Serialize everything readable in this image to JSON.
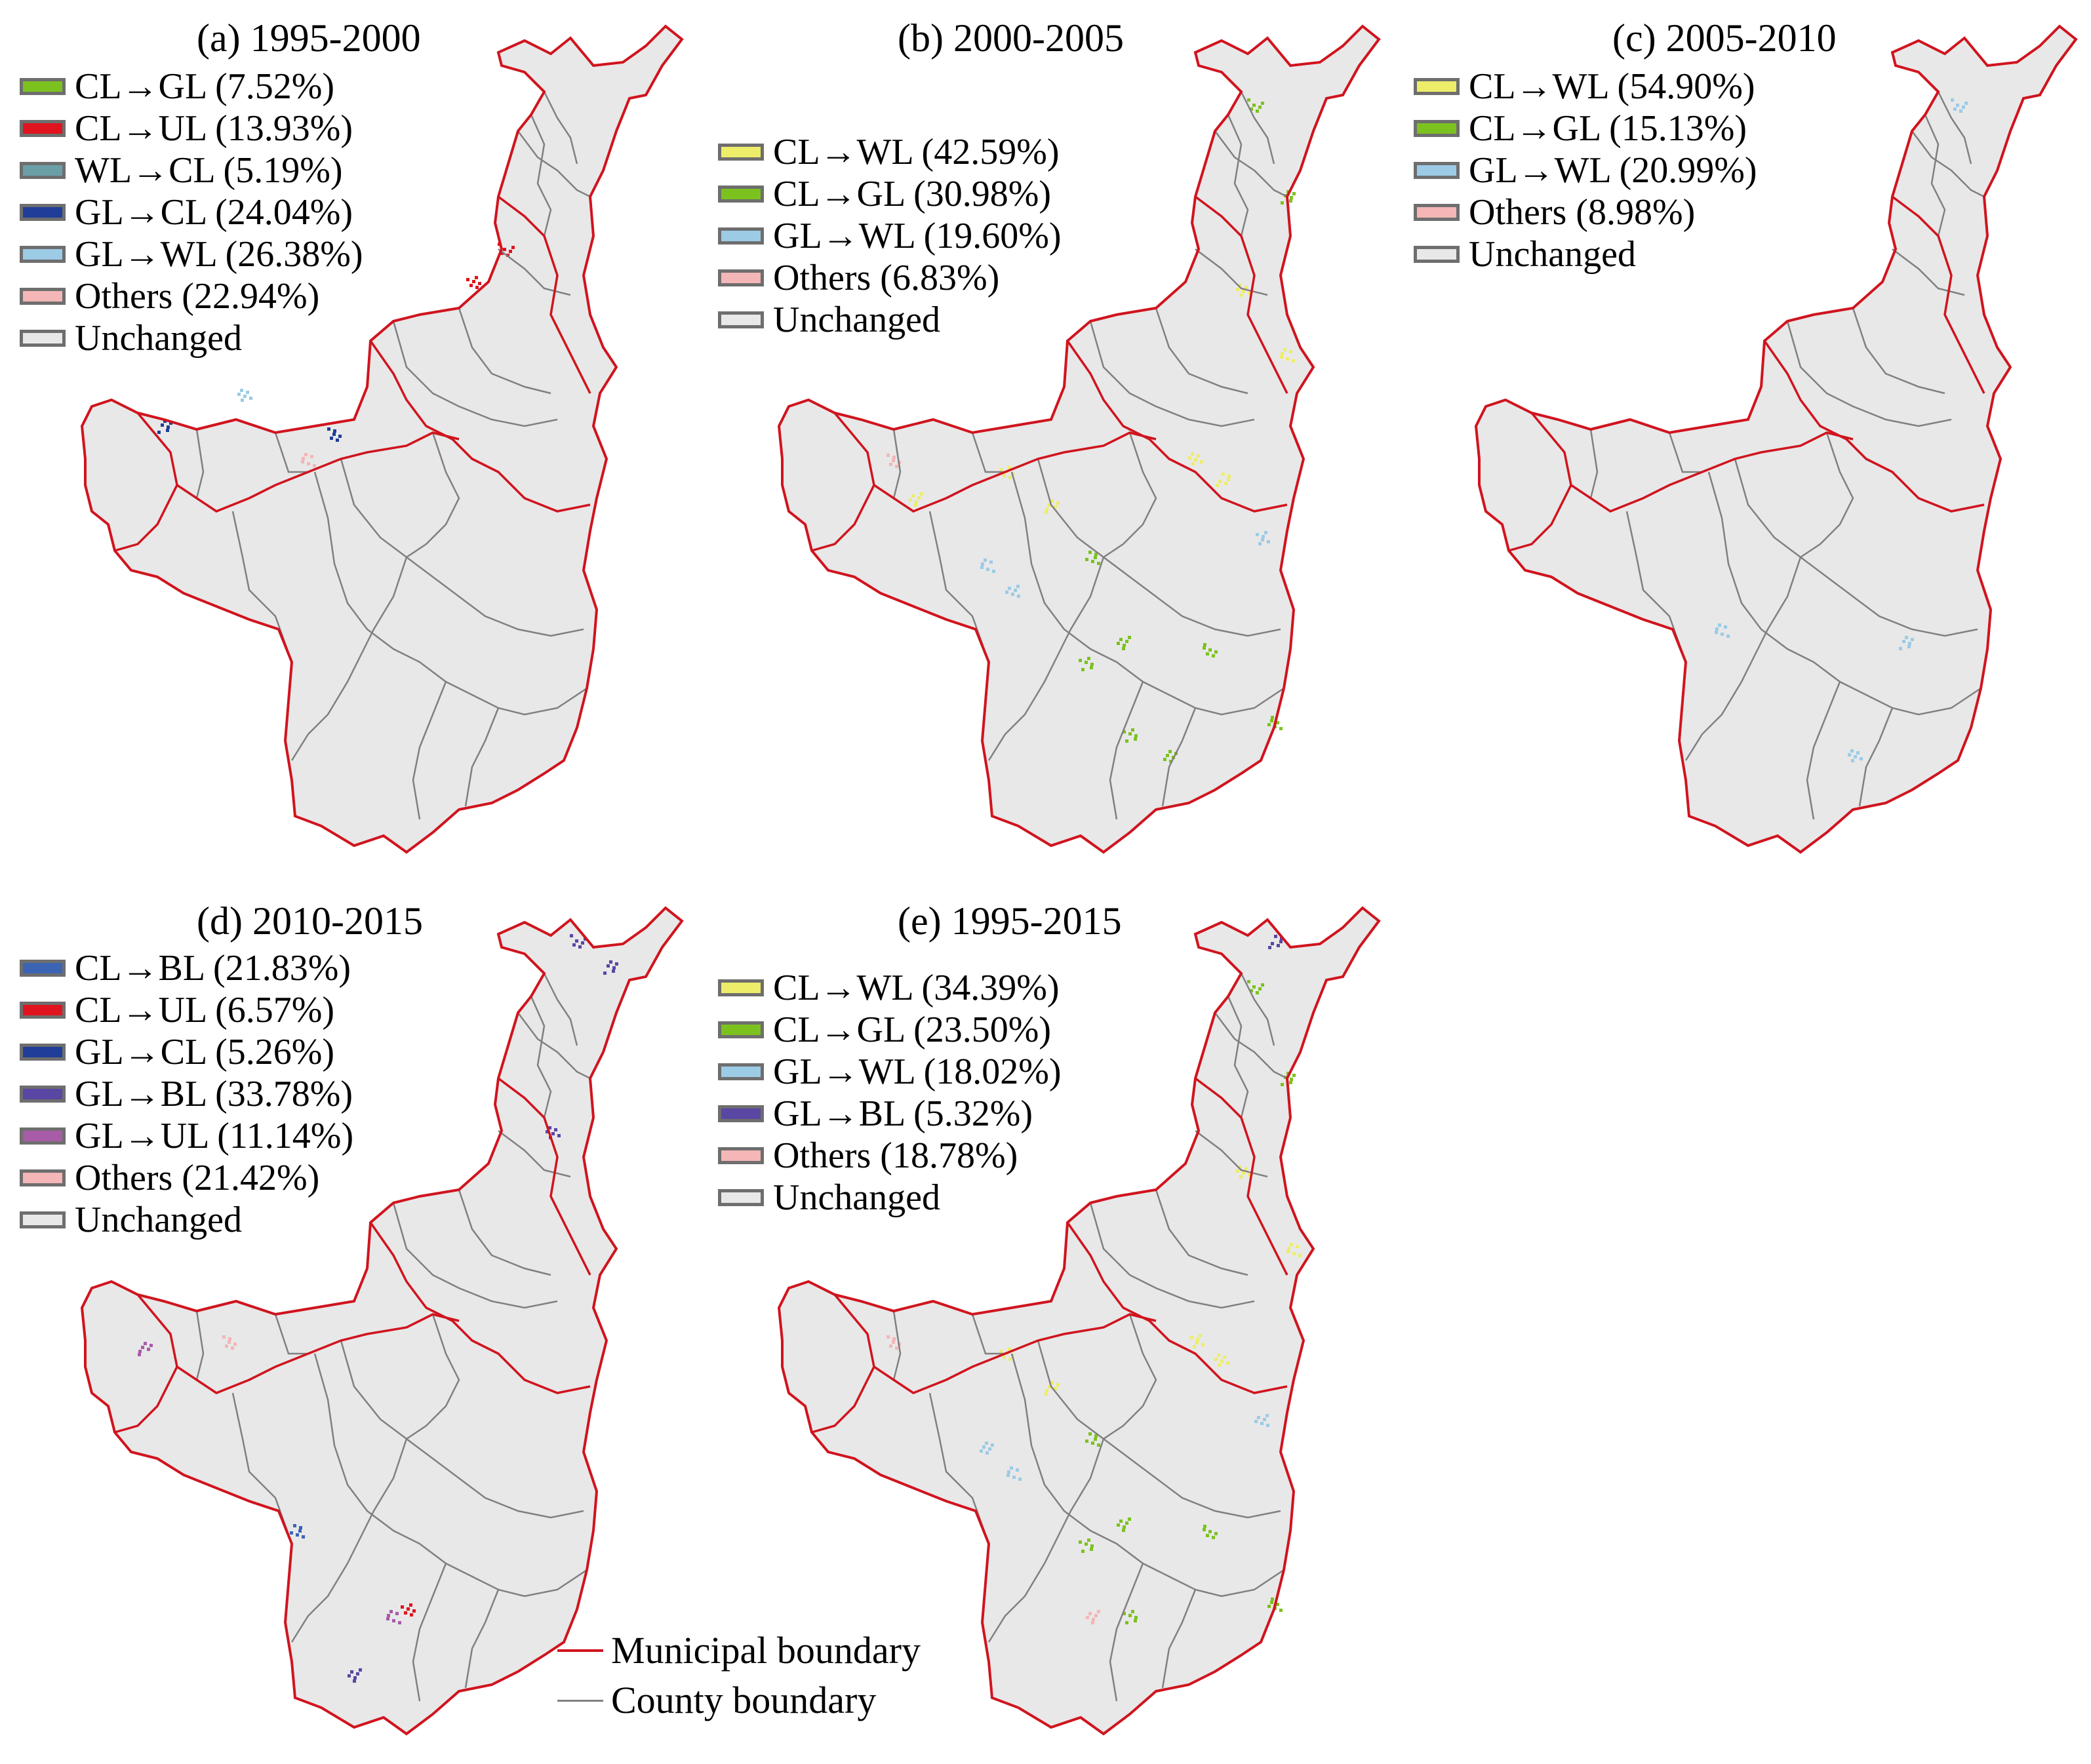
{
  "panels": [
    {
      "id": "a",
      "title": "(a)  1995-2000",
      "legend": [
        {
          "label": "CL→GL (7.52%)",
          "color": "#7cc21f"
        },
        {
          "label": "CL→UL (13.93%)",
          "color": "#e0141e"
        },
        {
          "label": "WL→CL (5.19%)",
          "color": "#6a9fa8"
        },
        {
          "label": "GL→CL (24.04%)",
          "color": "#1f3d99"
        },
        {
          "label": "GL→WL (26.38%)",
          "color": "#9ccbe6"
        },
        {
          "label": "Others (22.94%)",
          "color": "#f4b6b6"
        },
        {
          "label": "Unchanged",
          "color": "#e8e8e8"
        }
      ]
    },
    {
      "id": "b",
      "title": "(b)  2000-2005",
      "legend": [
        {
          "label": "CL→WL (42.59%)",
          "color": "#eded6a"
        },
        {
          "label": "CL→GL (30.98%)",
          "color": "#7cc21f"
        },
        {
          "label": "GL→WL (19.60%)",
          "color": "#9ccbe6"
        },
        {
          "label": "Others (6.83%)",
          "color": "#f4b6b6"
        },
        {
          "label": "Unchanged",
          "color": "#e8e8e8"
        }
      ]
    },
    {
      "id": "c",
      "title": "(c)  2005-2010",
      "legend": [
        {
          "label": "CL→WL (54.90%)",
          "color": "#eded6a"
        },
        {
          "label": "CL→GL (15.13%)",
          "color": "#7cc21f"
        },
        {
          "label": "GL→WL (20.99%)",
          "color": "#9ccbe6"
        },
        {
          "label": "Others (8.98%)",
          "color": "#f4b6b6"
        },
        {
          "label": "Unchanged",
          "color": "#e8e8e8"
        }
      ]
    },
    {
      "id": "d",
      "title": "(d)  2010-2015",
      "legend": [
        {
          "label": "CL→BL (21.83%)",
          "color": "#3b64b5"
        },
        {
          "label": "CL→UL (6.57%)",
          "color": "#e0141e"
        },
        {
          "label": "GL→CL (5.26%)",
          "color": "#1f3d99"
        },
        {
          "label": "GL→BL (33.78%)",
          "color": "#5a46a3"
        },
        {
          "label": "GL→UL (11.14%)",
          "color": "#a85ca8"
        },
        {
          "label": "Others (21.42%)",
          "color": "#f4b6b6"
        },
        {
          "label": "Unchanged",
          "color": "#e8e8e8"
        }
      ]
    },
    {
      "id": "e",
      "title": "(e)  1995-2015",
      "legend": [
        {
          "label": "CL→WL (34.39%)",
          "color": "#eded6a"
        },
        {
          "label": "CL→GL (23.50%)",
          "color": "#7cc21f"
        },
        {
          "label": "GL→WL (18.02%)",
          "color": "#9ccbe6"
        },
        {
          "label": "GL→BL (5.32%)",
          "color": "#5a46a3"
        },
        {
          "label": "Others (18.78%)",
          "color": "#f4b6b6"
        },
        {
          "label": "Unchanged",
          "color": "#e8e8e8"
        }
      ]
    }
  ],
  "boundary_legend": {
    "municipal": {
      "label": "Municipal boundary",
      "color": "#d0141e"
    },
    "county": {
      "label": "County boundary",
      "color": "#808080"
    }
  }
}
